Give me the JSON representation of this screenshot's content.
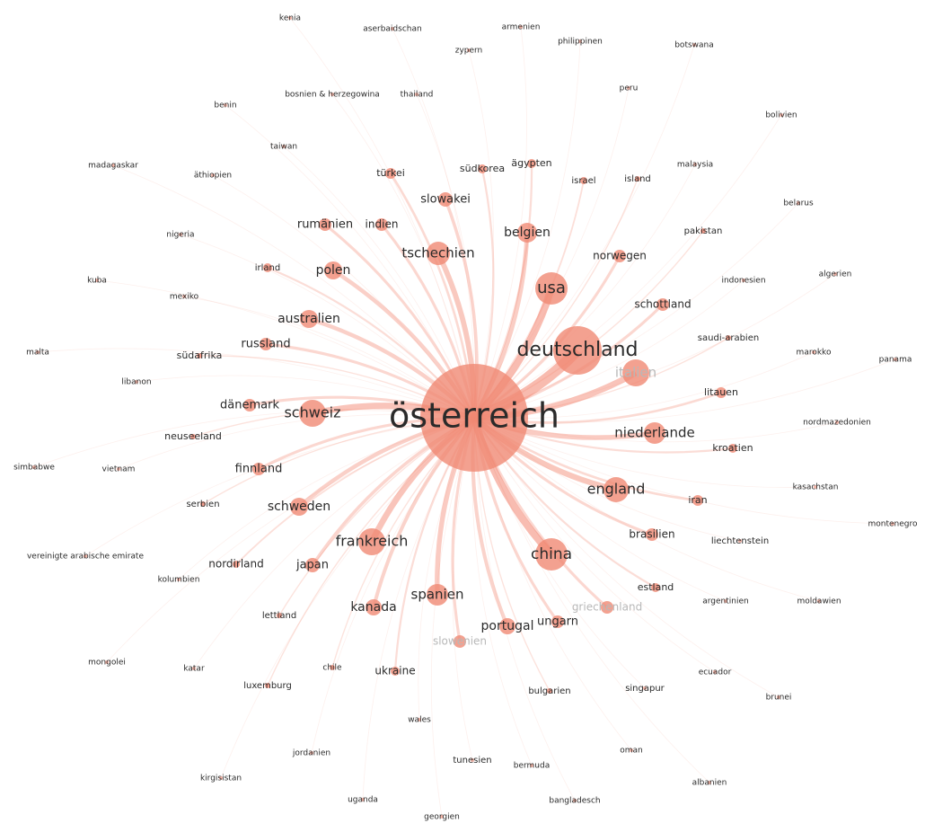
{
  "nodes": [
    "kenia",
    "aserbaidschan",
    "armenien",
    "zypern",
    "philippinen",
    "botswana",
    "peru",
    "bosnien & herzegowina",
    "thailand",
    "benin",
    "bolivien",
    "taiwan",
    "madagaskar",
    "äthiopien",
    "türkei",
    "südkorea",
    "ägypten",
    "israel",
    "island",
    "malaysia",
    "slowakei",
    "belarus",
    "rumänien",
    "indien",
    "belgien",
    "nigeria",
    "pakistan",
    "tschechien",
    "norwegen",
    "irland",
    "polen",
    "usa",
    "indonesien",
    "algerien",
    "kuba",
    "mexiko",
    "schottland",
    "australien",
    "saudi-arabien",
    "deutschland",
    "russland",
    "marokko",
    "malta",
    "südafrika",
    "panama",
    "italien",
    "libanon",
    "litauen",
    "dänemark",
    "schweiz",
    "österreich",
    "niederlande",
    "nordmazedonien",
    "neuseeland",
    "kroatien",
    "simbabwe",
    "vietnam",
    "finnland",
    "england",
    "kasachstan",
    "iran",
    "serbien",
    "schweden",
    "montenegro",
    "brasilien",
    "liechtenstein",
    "frankreich",
    "china",
    "vereinigte arabische emirate",
    "nordirland",
    "japan",
    "kolumbien",
    "estland",
    "spanien",
    "griechenland",
    "argentinien",
    "moldawien",
    "kanada",
    "lettland",
    "portugal",
    "ungarn",
    "slowenien",
    "mongolei",
    "katar",
    "chile",
    "ukraine",
    "ecuador",
    "luxemburg",
    "bulgarien",
    "singapur",
    "brunei",
    "wales",
    "jordanien",
    "oman",
    "tunesien",
    "bermuda",
    "kirgisistan",
    "albanien",
    "uganda",
    "bangladesch",
    "georgien"
  ]
}
